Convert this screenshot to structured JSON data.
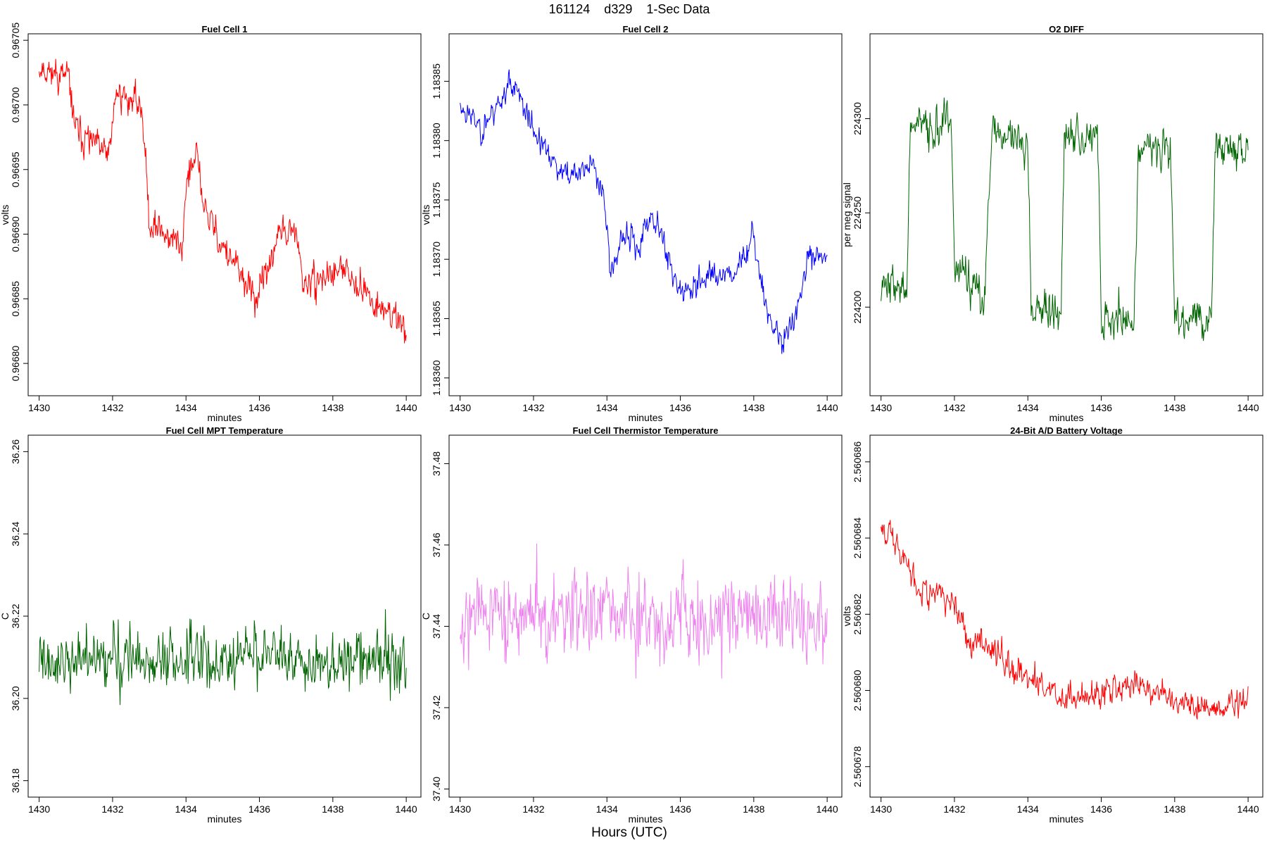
{
  "figure": {
    "suptitle": "161124    d329    1-Sec Data",
    "bottom_label": "Hours (UTC)"
  },
  "chart_data": [
    {
      "type": "line",
      "title": "Fuel Cell 1",
      "xlabel": "minutes",
      "ylabel": "volts",
      "color": "#ff0000",
      "xlim": [
        1429.7,
        1440.4
      ],
      "ylim": [
        0.966775,
        0.967055
      ],
      "xticks": [
        1430,
        1432,
        1434,
        1436,
        1438,
        1440
      ],
      "yticks": [
        0.9668,
        0.96685,
        0.9669,
        0.96695,
        0.967,
        0.96705
      ],
      "ytick_labels": [
        "0.96680",
        "0.96685",
        "0.96690",
        "0.96695",
        "0.96700",
        "0.96705"
      ],
      "x_start": 1430,
      "x_end": 1440,
      "points": 600,
      "series": [
        {
          "x": [
            1430,
            1430.8,
            1431.0,
            1431.9,
            1432.1,
            1432.8,
            1433.0,
            1433.9,
            1434.0,
            1434.3,
            1434.5,
            1435.0,
            1435.9,
            1436.1,
            1436.5,
            1437.0,
            1437.2,
            1438.0,
            1438.5,
            1439.0,
            1440
          ],
          "y": [
            0.96703,
            0.96702,
            0.96698,
            0.96696,
            0.96701,
            0.967,
            0.96691,
            0.96689,
            0.96694,
            0.96696,
            0.96692,
            0.96689,
            0.96685,
            0.96686,
            0.9669,
            0.9669,
            0.96686,
            0.96687,
            0.96687,
            0.96685,
            0.96683
          ]
        }
      ]
    },
    {
      "type": "line",
      "title": "Fuel Cell 2",
      "xlabel": "minutes",
      "ylabel": "volts",
      "color": "#0000ff",
      "xlim": [
        1429.7,
        1440.4
      ],
      "ylim": [
        1.183585,
        1.18389
      ],
      "xticks": [
        1430,
        1432,
        1434,
        1436,
        1438,
        1440
      ],
      "yticks": [
        1.1836,
        1.18365,
        1.1837,
        1.18375,
        1.1838,
        1.18385
      ],
      "ytick_labels": [
        "1.18360",
        "1.18365",
        "1.18370",
        "1.18375",
        "1.18380",
        "1.18385"
      ],
      "x_start": 1430,
      "x_end": 1440,
      "points": 600,
      "series": [
        {
          "x": [
            1430,
            1430.3,
            1430.6,
            1431.0,
            1431.4,
            1431.7,
            1432.0,
            1432.5,
            1433.0,
            1433.6,
            1433.9,
            1434.1,
            1434.5,
            1434.9,
            1435.2,
            1435.6,
            1436.0,
            1436.5,
            1437.0,
            1437.5,
            1438.0,
            1438.4,
            1438.8,
            1439.1,
            1439.5,
            1440
          ],
          "y": [
            1.18383,
            1.18382,
            1.18381,
            1.18383,
            1.18385,
            1.18383,
            1.18381,
            1.18378,
            1.18377,
            1.18378,
            1.18376,
            1.18369,
            1.18372,
            1.18371,
            1.18374,
            1.18371,
            1.18367,
            1.18368,
            1.18369,
            1.18369,
            1.18372,
            1.18365,
            1.18363,
            1.18365,
            1.1837,
            1.1837
          ]
        }
      ]
    },
    {
      "type": "line",
      "title": "O2 DIFF",
      "xlabel": "minutes",
      "ylabel": "per meg signal",
      "color": "#006400",
      "xlim": [
        1429.7,
        1440.4
      ],
      "ylim": [
        224153,
        224345
      ],
      "xticks": [
        1430,
        1432,
        1434,
        1436,
        1438,
        1440
      ],
      "yticks": [
        224200,
        224250,
        224300
      ],
      "ytick_labels": [
        "224200",
        "224250",
        "224300"
      ],
      "x_start": 1430,
      "x_end": 1440,
      "points": 600,
      "series": [
        {
          "x": [
            1430,
            1430.7,
            1430.8,
            1431.9,
            1432.0,
            1432.8,
            1433.0,
            1434.0,
            1434.1,
            1434.9,
            1435.0,
            1435.9,
            1436.0,
            1436.9,
            1437.0,
            1437.9,
            1438.0,
            1439.0,
            1439.1,
            1440
          ],
          "y": [
            224215,
            224208,
            224295,
            224297,
            224225,
            224200,
            224293,
            224290,
            224200,
            224195,
            224290,
            224293,
            224195,
            224193,
            224283,
            224286,
            224195,
            224193,
            224285,
            224282
          ]
        }
      ]
    },
    {
      "type": "line",
      "title": "Fuel Cell MPT Temperature",
      "xlabel": "minutes",
      "ylabel": "C",
      "color": "#006400",
      "xlim": [
        1429.7,
        1440.4
      ],
      "ylim": [
        36.176,
        36.264
      ],
      "xticks": [
        1430,
        1432,
        1434,
        1436,
        1438,
        1440
      ],
      "yticks": [
        36.18,
        36.2,
        36.22,
        36.24,
        36.26
      ],
      "ytick_labels": [
        "36.18",
        "36.20",
        "36.22",
        "36.24",
        "36.26"
      ],
      "x_start": 1430,
      "x_end": 1440,
      "points": 600,
      "series": [
        {
          "x": [
            1430,
            1432,
            1434,
            1436,
            1438,
            1440
          ],
          "y": [
            36.209,
            36.209,
            36.209,
            36.21,
            36.209,
            36.209
          ]
        }
      ]
    },
    {
      "type": "line",
      "title": "Fuel Cell Thermistor Temperature",
      "xlabel": "minutes",
      "ylabel": "C",
      "color": "#ee82ee",
      "xlim": [
        1429.7,
        1440.4
      ],
      "ylim": [
        37.398,
        37.487
      ],
      "xticks": [
        1430,
        1432,
        1434,
        1436,
        1438,
        1440
      ],
      "yticks": [
        37.4,
        37.42,
        37.44,
        37.46,
        37.48
      ],
      "ytick_labels": [
        "37.40",
        "37.42",
        "37.44",
        "37.46",
        "37.48"
      ],
      "x_start": 1430,
      "x_end": 1440,
      "points": 600,
      "series": [
        {
          "x": [
            1430,
            1432,
            1434,
            1436,
            1438,
            1440
          ],
          "y": [
            37.443,
            37.443,
            37.443,
            37.443,
            37.443,
            37.443
          ]
        }
      ]
    },
    {
      "type": "line",
      "title": "24-Bit A/D Battery Voltage",
      "xlabel": "minutes",
      "ylabel": "volts",
      "color": "#ff0000",
      "xlim": [
        1429.7,
        1440.4
      ],
      "ylim": [
        2.5606772,
        2.5606867
      ],
      "xticks": [
        1430,
        1432,
        1434,
        1436,
        1438,
        1440
      ],
      "yticks": [
        2.560678,
        2.56068,
        2.560682,
        2.560684,
        2.560686
      ],
      "ytick_labels": [
        "2.560678",
        "2.560680",
        "2.560682",
        "2.560684",
        "2.560686"
      ],
      "x_start": 1430,
      "x_end": 1440,
      "points": 600,
      "series": [
        {
          "x": [
            1430,
            1430.4,
            1431.0,
            1431.8,
            1432.3,
            1433.0,
            1434.0,
            1435.0,
            1436.0,
            1437.0,
            1438.0,
            1439.0,
            1440
          ],
          "y": [
            2.5606845,
            2.5606838,
            2.5606828,
            2.5606824,
            2.5606815,
            2.5606812,
            2.5606803,
            2.5606798,
            2.5606799,
            2.5606802,
            2.5606797,
            2.5606795,
            2.5606797
          ]
        }
      ]
    }
  ]
}
